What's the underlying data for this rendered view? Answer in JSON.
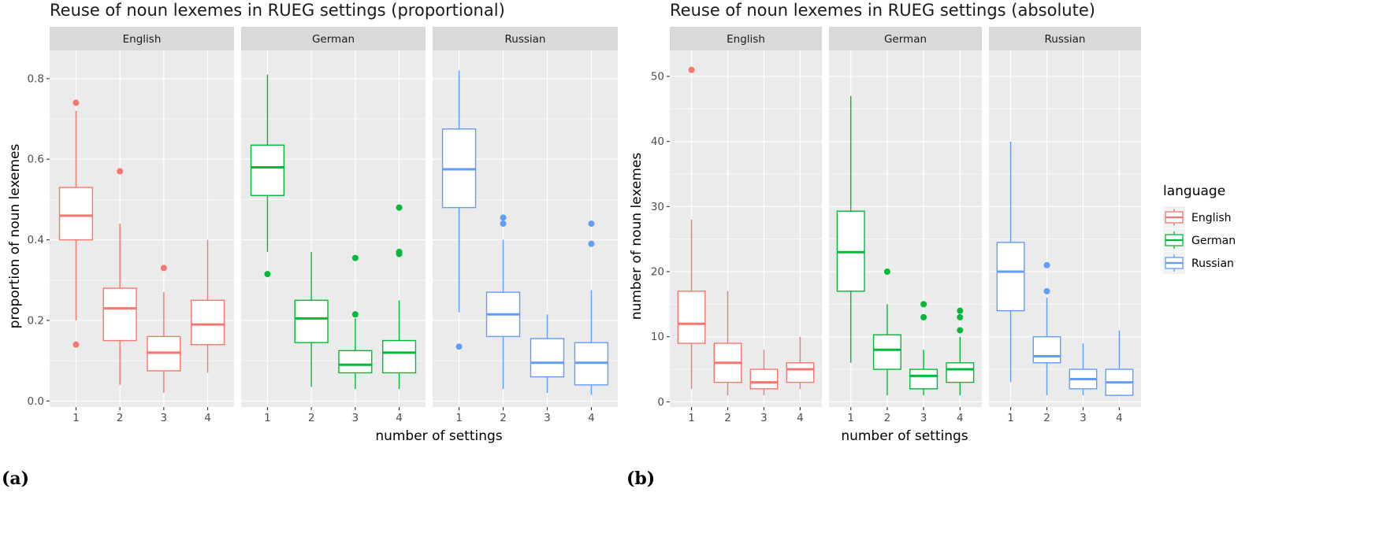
{
  "colors": {
    "English": "#F8766D",
    "German": "#00BA38",
    "Russian": "#619CFF",
    "panel_bg": "#EBEBEB",
    "strip_bg": "#D9D9D9",
    "grid": "#FFFFFF"
  },
  "legend": {
    "title": "language",
    "items": [
      "English",
      "German",
      "Russian"
    ]
  },
  "chart_data": [
    {
      "type": "boxplot",
      "panel_label": "(a)",
      "title": "Reuse of noun lexemes in RUEG settings (proportional)",
      "xlabel": "number of settings",
      "ylabel": "proportion of noun lexemes",
      "ylim": [
        -0.015,
        0.87
      ],
      "yticks": [
        0.0,
        0.2,
        0.4,
        0.6,
        0.8
      ],
      "ytick_labels": [
        "0.0",
        "0.2",
        "0.4",
        "0.6",
        "0.8"
      ],
      "categories": [
        "1",
        "2",
        "3",
        "4"
      ],
      "facets": [
        {
          "name": "English",
          "boxes": [
            {
              "x": "1",
              "low": 0.2,
              "q1": 0.4,
              "median": 0.46,
              "q3": 0.53,
              "high": 0.72,
              "outliers": [
                0.74,
                0.14
              ]
            },
            {
              "x": "2",
              "low": 0.04,
              "q1": 0.15,
              "median": 0.23,
              "q3": 0.28,
              "high": 0.44,
              "outliers": [
                0.57
              ]
            },
            {
              "x": "3",
              "low": 0.02,
              "q1": 0.075,
              "median": 0.12,
              "q3": 0.16,
              "high": 0.27,
              "outliers": [
                0.33
              ]
            },
            {
              "x": "4",
              "low": 0.07,
              "q1": 0.14,
              "median": 0.19,
              "q3": 0.25,
              "high": 0.4,
              "outliers": []
            }
          ]
        },
        {
          "name": "German",
          "boxes": [
            {
              "x": "1",
              "low": 0.37,
              "q1": 0.51,
              "median": 0.58,
              "q3": 0.635,
              "high": 0.81,
              "outliers": [
                0.315
              ]
            },
            {
              "x": "2",
              "low": 0.035,
              "q1": 0.145,
              "median": 0.205,
              "q3": 0.25,
              "high": 0.37,
              "outliers": []
            },
            {
              "x": "3",
              "low": 0.03,
              "q1": 0.07,
              "median": 0.09,
              "q3": 0.125,
              "high": 0.205,
              "outliers": [
                0.355,
                0.215
              ]
            },
            {
              "x": "4",
              "low": 0.03,
              "q1": 0.07,
              "median": 0.12,
              "q3": 0.15,
              "high": 0.25,
              "outliers": [
                0.48,
                0.37,
                0.365
              ]
            }
          ]
        },
        {
          "name": "Russian",
          "boxes": [
            {
              "x": "1",
              "low": 0.22,
              "q1": 0.48,
              "median": 0.575,
              "q3": 0.675,
              "high": 0.82,
              "outliers": [
                0.135
              ]
            },
            {
              "x": "2",
              "low": 0.03,
              "q1": 0.16,
              "median": 0.215,
              "q3": 0.27,
              "high": 0.4,
              "outliers": [
                0.455,
                0.44
              ]
            },
            {
              "x": "3",
              "low": 0.02,
              "q1": 0.06,
              "median": 0.095,
              "q3": 0.155,
              "high": 0.215,
              "outliers": []
            },
            {
              "x": "4",
              "low": 0.015,
              "q1": 0.04,
              "median": 0.095,
              "q3": 0.145,
              "high": 0.275,
              "outliers": [
                0.44,
                0.39
              ]
            }
          ]
        }
      ]
    },
    {
      "type": "boxplot",
      "panel_label": "(b)",
      "title": "Reuse of noun lexemes in RUEG settings (absolute)",
      "xlabel": "number of settings",
      "ylabel": "number of noun lexemes",
      "ylim": [
        -0.8,
        54
      ],
      "yticks": [
        0,
        10,
        20,
        30,
        40,
        50
      ],
      "ytick_labels": [
        "0",
        "10",
        "20",
        "30",
        "40",
        "50"
      ],
      "categories": [
        "1",
        "2",
        "3",
        "4"
      ],
      "facets": [
        {
          "name": "English",
          "boxes": [
            {
              "x": "1",
              "low": 2,
              "q1": 9,
              "median": 12,
              "q3": 17,
              "high": 28,
              "outliers": [
                51
              ]
            },
            {
              "x": "2",
              "low": 1,
              "q1": 3,
              "median": 6,
              "q3": 9,
              "high": 17,
              "outliers": []
            },
            {
              "x": "3",
              "low": 1,
              "q1": 2,
              "median": 3,
              "q3": 5,
              "high": 8,
              "outliers": []
            },
            {
              "x": "4",
              "low": 2,
              "q1": 3,
              "median": 5,
              "q3": 6,
              "high": 10,
              "outliers": []
            }
          ]
        },
        {
          "name": "German",
          "boxes": [
            {
              "x": "1",
              "low": 6,
              "q1": 17,
              "median": 23,
              "q3": 29.3,
              "high": 47,
              "outliers": []
            },
            {
              "x": "2",
              "low": 1,
              "q1": 5,
              "median": 8,
              "q3": 10.3,
              "high": 15,
              "outliers": [
                20
              ]
            },
            {
              "x": "3",
              "low": 1,
              "q1": 2,
              "median": 4,
              "q3": 5,
              "high": 8,
              "outliers": [
                15,
                13
              ]
            },
            {
              "x": "4",
              "low": 1,
              "q1": 3,
              "median": 5,
              "q3": 6,
              "high": 10,
              "outliers": [
                14,
                13,
                11
              ]
            }
          ]
        },
        {
          "name": "Russian",
          "boxes": [
            {
              "x": "1",
              "low": 3,
              "q1": 14,
              "median": 20,
              "q3": 24.5,
              "high": 40,
              "outliers": []
            },
            {
              "x": "2",
              "low": 1,
              "q1": 6,
              "median": 7,
              "q3": 10,
              "high": 16,
              "outliers": [
                21,
                17
              ]
            },
            {
              "x": "3",
              "low": 1,
              "q1": 2,
              "median": 3.5,
              "q3": 5,
              "high": 9,
              "outliers": []
            },
            {
              "x": "4",
              "low": 1,
              "q1": 1,
              "median": 3,
              "q3": 5,
              "high": 11,
              "outliers": []
            }
          ]
        }
      ]
    }
  ]
}
